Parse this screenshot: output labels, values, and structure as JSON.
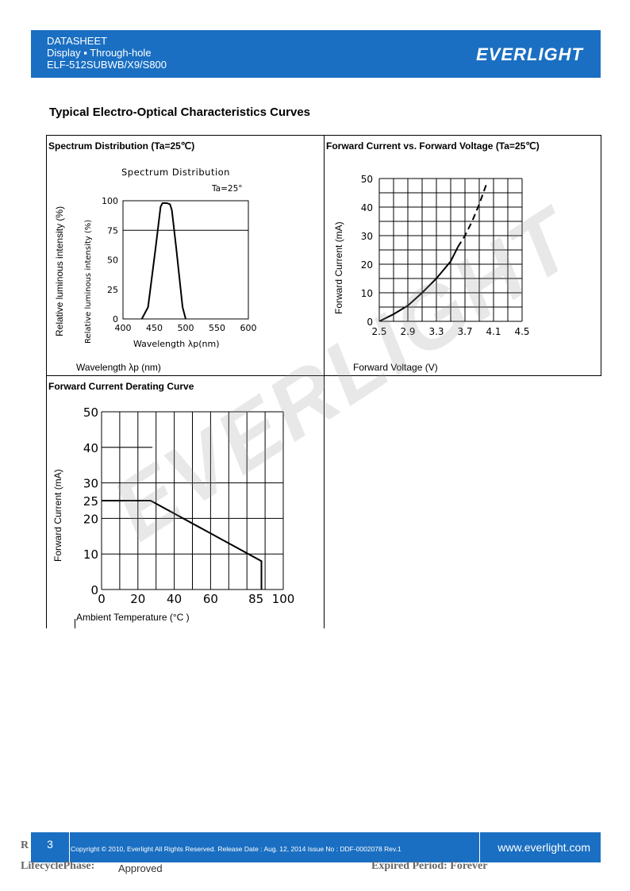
{
  "header": {
    "line1": "DATASHEET",
    "line2": "Display ▪ Through-hole",
    "line3": "ELF-512SUBWB/X9/S800",
    "logo": "EVERLIGHT"
  },
  "section_title": "Typical Electro-Optical Characteristics Curves",
  "watermark": "EVERLIGHT",
  "panels": {
    "spectrum": {
      "title": "Spectrum Distribution (Ta=25℃)",
      "outer_ylabel": "Relative luminous intensity (%)",
      "outer_xlabel": "Wavelength λp (nm)",
      "inner_title": "Spectrum Distribution",
      "inner_ylabel": "Relative luminous intensity (%)",
      "inner_xlabel": "Wavelength λp(nm)",
      "annotation": "Ta=25°"
    },
    "iv": {
      "title": "Forward Current vs. Forward Voltage (Ta=25℃)",
      "ylabel": "Forward Current (mA)",
      "xlabel": "Forward Voltage (V)"
    },
    "derating": {
      "title": "Forward Current Derating Curve",
      "ylabel": "Forward Current (mA)",
      "xlabel": "Ambient Temperature (°C )"
    }
  },
  "chart_data": [
    {
      "type": "line",
      "title": "Spectrum Distribution",
      "xlabel": "Wavelength λp(nm)",
      "ylabel": "Relative luminous intensity (%)",
      "xlim": [
        400,
        600
      ],
      "ylim": [
        0,
        100
      ],
      "xticks": [
        "400",
        "450",
        "500",
        "550",
        "600"
      ],
      "yticks": [
        "0",
        "25",
        "50",
        "75",
        "100"
      ],
      "series": [
        {
          "x": [
            430,
            440,
            452,
            460,
            463,
            470,
            475,
            478,
            485,
            495,
            500
          ],
          "y": [
            0,
            10,
            60,
            95,
            98,
            98,
            97,
            92,
            60,
            10,
            0
          ]
        }
      ]
    },
    {
      "type": "line",
      "title": "Forward Current vs. Forward Voltage (Ta=25℃)",
      "xlabel": "Forward Voltage (V)",
      "ylabel": "Forward Current (mA)",
      "xlim": [
        2.5,
        4.5
      ],
      "ylim": [
        0,
        50
      ],
      "xticks": [
        "2.5",
        "2.9",
        "3.3",
        "3.7",
        "4.1",
        "4.5"
      ],
      "yticks": [
        "0",
        "10",
        "20",
        "30",
        "40",
        "50"
      ],
      "series": [
        {
          "style": "solid",
          "x": [
            2.5,
            2.7,
            2.9,
            3.1,
            3.3,
            3.5,
            3.6
          ],
          "y": [
            0,
            2.5,
            5.5,
            10,
            15,
            21,
            26
          ]
        },
        {
          "style": "dashed",
          "x": [
            3.6,
            3.7,
            3.8,
            3.9,
            4.0
          ],
          "y": [
            26,
            30,
            35,
            41,
            48
          ]
        }
      ]
    },
    {
      "type": "line",
      "title": "Forward Current Derating Curve",
      "xlabel": "Ambient Temperature (°C )",
      "ylabel": "Forward Current (mA)",
      "xlim": [
        0,
        100
      ],
      "ylim": [
        0,
        50
      ],
      "xticks": [
        "0",
        "20",
        "40",
        "60",
        "85",
        "100"
      ],
      "yticks": [
        "0",
        "10",
        "20",
        "25",
        "30",
        "40",
        "50"
      ],
      "series": [
        {
          "x": [
            0,
            27,
            88,
            88
          ],
          "y": [
            25,
            25,
            8,
            0
          ]
        }
      ],
      "annotations": [
        {
          "x": [
            0,
            28
          ],
          "y": [
            40,
            40
          ]
        }
      ]
    }
  ],
  "footer": {
    "page_number": "3",
    "copyright": "Copyright © 2010, Everlight All Rights Reserved. Release Date : Aug. 12, 2014 Issue No : DDF-0002078 Rev.1",
    "url": "www.everlight.com",
    "lifecycle_label": "LifecyclePhase:",
    "lifecycle_value": "Approved",
    "expired": "Expired Period: Forever",
    "r_fragment": "R"
  }
}
